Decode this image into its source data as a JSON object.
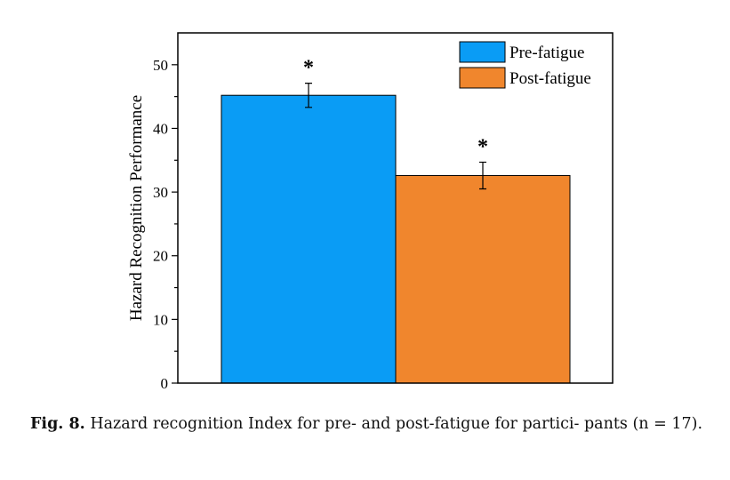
{
  "chart_data": {
    "type": "bar",
    "categories": [
      "Pre-fatigue",
      "Post-fatigue"
    ],
    "values": [
      45.2,
      32.6
    ],
    "error": [
      1.9,
      2.1
    ],
    "annotations": [
      "*",
      "*"
    ],
    "colors": [
      "#0a9cf5",
      "#f0862d"
    ],
    "title": "",
    "xlabel": "",
    "ylabel": "Hazard Recognition Performance",
    "ylim": [
      0,
      55
    ],
    "yticks": [
      0,
      10,
      20,
      30,
      40,
      50
    ],
    "legend": [
      "Pre-fatigue",
      "Post-fatigue"
    ],
    "legend_position": "top-right"
  },
  "caption": {
    "label": "Fig. 8.",
    "text": "Hazard recognition Index for pre- and post-fatigue for partici- pants (n = 17)."
  }
}
